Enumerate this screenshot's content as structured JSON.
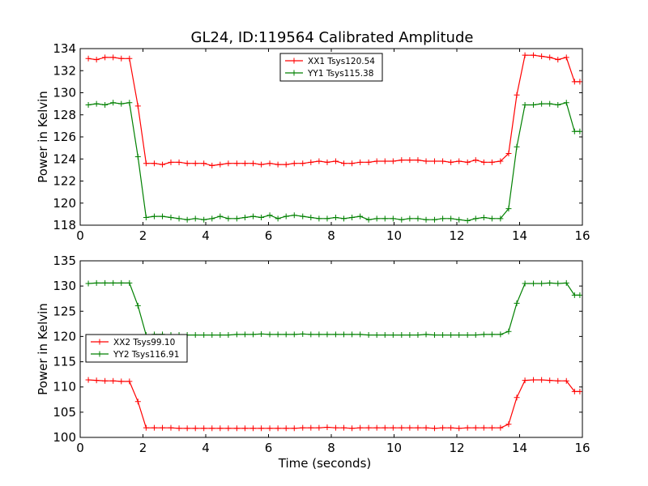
{
  "figure": {
    "title": "GL24, ID:119564 Calibrated Amplitude"
  },
  "chart_data": [
    {
      "type": "line",
      "title": "GL24, ID:119564 Calibrated Amplitude",
      "xlabel": "",
      "ylabel": "Power in Kelvin",
      "xlim": [
        0,
        16
      ],
      "ylim": [
        118,
        134
      ],
      "xticks": [
        0,
        2,
        4,
        6,
        8,
        10,
        12,
        14,
        16
      ],
      "yticks": [
        118,
        120,
        122,
        124,
        126,
        128,
        130,
        132,
        134
      ],
      "grid": false,
      "legend_placement": "upper-center",
      "series": [
        {
          "name": "XX1 Tsys120.54",
          "color": "#ff0000",
          "x": [
            0.26,
            0.52,
            0.79,
            1.05,
            1.31,
            1.57,
            1.84,
            2.1,
            2.36,
            2.62,
            2.89,
            3.15,
            3.41,
            3.67,
            3.94,
            4.2,
            4.46,
            4.72,
            4.99,
            5.25,
            5.51,
            5.77,
            6.04,
            6.3,
            6.56,
            6.82,
            7.09,
            7.35,
            7.61,
            7.87,
            8.14,
            8.4,
            8.66,
            8.92,
            9.19,
            9.45,
            9.71,
            9.97,
            10.24,
            10.5,
            10.76,
            11.02,
            11.29,
            11.55,
            11.81,
            12.07,
            12.34,
            12.6,
            12.86,
            13.12,
            13.39,
            13.65,
            13.91,
            14.17,
            14.44,
            14.7,
            14.96,
            15.22,
            15.49,
            15.75,
            15.92
          ],
          "y": [
            133.1,
            133.0,
            133.2,
            133.2,
            133.1,
            133.1,
            128.8,
            123.6,
            123.6,
            123.5,
            123.7,
            123.7,
            123.6,
            123.6,
            123.6,
            123.4,
            123.5,
            123.6,
            123.6,
            123.6,
            123.6,
            123.5,
            123.6,
            123.5,
            123.5,
            123.6,
            123.6,
            123.7,
            123.8,
            123.7,
            123.8,
            123.6,
            123.6,
            123.7,
            123.7,
            123.8,
            123.8,
            123.8,
            123.9,
            123.9,
            123.9,
            123.8,
            123.8,
            123.8,
            123.7,
            123.8,
            123.7,
            123.9,
            123.7,
            123.7,
            123.8,
            124.5,
            129.8,
            133.4,
            133.4,
            133.3,
            133.2,
            133.0,
            133.2,
            131.0,
            131.0
          ]
        },
        {
          "name": "YY1 Tsys115.38",
          "color": "#008000",
          "x": [
            0.26,
            0.52,
            0.79,
            1.05,
            1.31,
            1.57,
            1.84,
            2.1,
            2.36,
            2.62,
            2.89,
            3.15,
            3.41,
            3.67,
            3.94,
            4.2,
            4.46,
            4.72,
            4.99,
            5.25,
            5.51,
            5.77,
            6.04,
            6.3,
            6.56,
            6.82,
            7.09,
            7.35,
            7.61,
            7.87,
            8.14,
            8.4,
            8.66,
            8.92,
            9.19,
            9.45,
            9.71,
            9.97,
            10.24,
            10.5,
            10.76,
            11.02,
            11.29,
            11.55,
            11.81,
            12.07,
            12.34,
            12.6,
            12.86,
            13.12,
            13.39,
            13.65,
            13.91,
            14.17,
            14.44,
            14.7,
            14.96,
            15.22,
            15.49,
            15.75,
            15.92
          ],
          "y": [
            128.9,
            129.0,
            128.9,
            129.1,
            129.0,
            129.1,
            124.2,
            118.7,
            118.8,
            118.8,
            118.7,
            118.6,
            118.5,
            118.6,
            118.5,
            118.6,
            118.8,
            118.6,
            118.6,
            118.7,
            118.8,
            118.7,
            118.9,
            118.6,
            118.8,
            118.9,
            118.8,
            118.7,
            118.6,
            118.6,
            118.7,
            118.6,
            118.7,
            118.8,
            118.5,
            118.6,
            118.6,
            118.6,
            118.5,
            118.6,
            118.6,
            118.5,
            118.5,
            118.6,
            118.6,
            118.5,
            118.4,
            118.6,
            118.7,
            118.6,
            118.6,
            119.5,
            125.1,
            128.9,
            128.9,
            129.0,
            129.0,
            128.9,
            129.1,
            126.5,
            126.5
          ]
        }
      ]
    },
    {
      "type": "line",
      "title": "",
      "xlabel": "Time (seconds)",
      "ylabel": "Power in Kelvin",
      "xlim": [
        0,
        16
      ],
      "ylim": [
        100,
        135
      ],
      "xticks": [
        0,
        2,
        4,
        6,
        8,
        10,
        12,
        14,
        16
      ],
      "yticks": [
        100,
        105,
        110,
        115,
        120,
        125,
        130,
        135
      ],
      "grid": false,
      "legend_placement": "center-left",
      "series": [
        {
          "name": "XX2 Tsys99.10",
          "color": "#ff0000",
          "x": [
            0.26,
            0.52,
            0.79,
            1.05,
            1.31,
            1.57,
            1.84,
            2.1,
            2.36,
            2.62,
            2.89,
            3.15,
            3.41,
            3.67,
            3.94,
            4.2,
            4.46,
            4.72,
            4.99,
            5.25,
            5.51,
            5.77,
            6.04,
            6.3,
            6.56,
            6.82,
            7.09,
            7.35,
            7.61,
            7.87,
            8.14,
            8.4,
            8.66,
            8.92,
            9.19,
            9.45,
            9.71,
            9.97,
            10.24,
            10.5,
            10.76,
            11.02,
            11.29,
            11.55,
            11.81,
            12.07,
            12.34,
            12.6,
            12.86,
            13.12,
            13.39,
            13.65,
            13.91,
            14.17,
            14.44,
            14.7,
            14.96,
            15.22,
            15.49,
            15.75,
            15.92
          ],
          "y": [
            111.4,
            111.3,
            111.2,
            111.2,
            111.1,
            111.1,
            107.1,
            101.9,
            101.9,
            101.9,
            101.9,
            101.8,
            101.8,
            101.8,
            101.8,
            101.8,
            101.8,
            101.8,
            101.8,
            101.8,
            101.8,
            101.8,
            101.8,
            101.8,
            101.8,
            101.8,
            101.9,
            101.9,
            101.9,
            102.0,
            101.9,
            101.9,
            101.8,
            101.9,
            101.9,
            101.9,
            101.9,
            101.9,
            101.9,
            101.9,
            101.9,
            101.9,
            101.8,
            101.9,
            101.9,
            101.8,
            101.9,
            101.9,
            101.9,
            101.9,
            101.9,
            102.6,
            107.9,
            111.3,
            111.4,
            111.4,
            111.3,
            111.2,
            111.2,
            109.1,
            109.1
          ]
        },
        {
          "name": "YY2 Tsys116.91",
          "color": "#008000",
          "x": [
            0.26,
            0.52,
            0.79,
            1.05,
            1.31,
            1.57,
            1.84,
            2.1,
            2.36,
            2.62,
            2.89,
            3.15,
            3.41,
            3.67,
            3.94,
            4.2,
            4.46,
            4.72,
            4.99,
            5.25,
            5.51,
            5.77,
            6.04,
            6.3,
            6.56,
            6.82,
            7.09,
            7.35,
            7.61,
            7.87,
            8.14,
            8.4,
            8.66,
            8.92,
            9.19,
            9.45,
            9.71,
            9.97,
            10.24,
            10.5,
            10.76,
            11.02,
            11.29,
            11.55,
            11.81,
            12.07,
            12.34,
            12.6,
            12.86,
            13.12,
            13.39,
            13.65,
            13.91,
            14.17,
            14.44,
            14.7,
            14.96,
            15.22,
            15.49,
            15.75,
            15.92
          ],
          "y": [
            130.5,
            130.6,
            130.6,
            130.6,
            130.6,
            130.6,
            126.1,
            120.3,
            120.4,
            120.4,
            120.3,
            120.3,
            120.3,
            120.3,
            120.3,
            120.3,
            120.3,
            120.3,
            120.4,
            120.4,
            120.4,
            120.5,
            120.4,
            120.4,
            120.4,
            120.4,
            120.5,
            120.4,
            120.4,
            120.4,
            120.4,
            120.4,
            120.4,
            120.4,
            120.3,
            120.3,
            120.3,
            120.3,
            120.3,
            120.3,
            120.3,
            120.4,
            120.3,
            120.3,
            120.3,
            120.3,
            120.3,
            120.3,
            120.4,
            120.4,
            120.4,
            121.0,
            126.6,
            130.5,
            130.5,
            130.5,
            130.6,
            130.5,
            130.6,
            128.2,
            128.2
          ]
        }
      ]
    }
  ]
}
